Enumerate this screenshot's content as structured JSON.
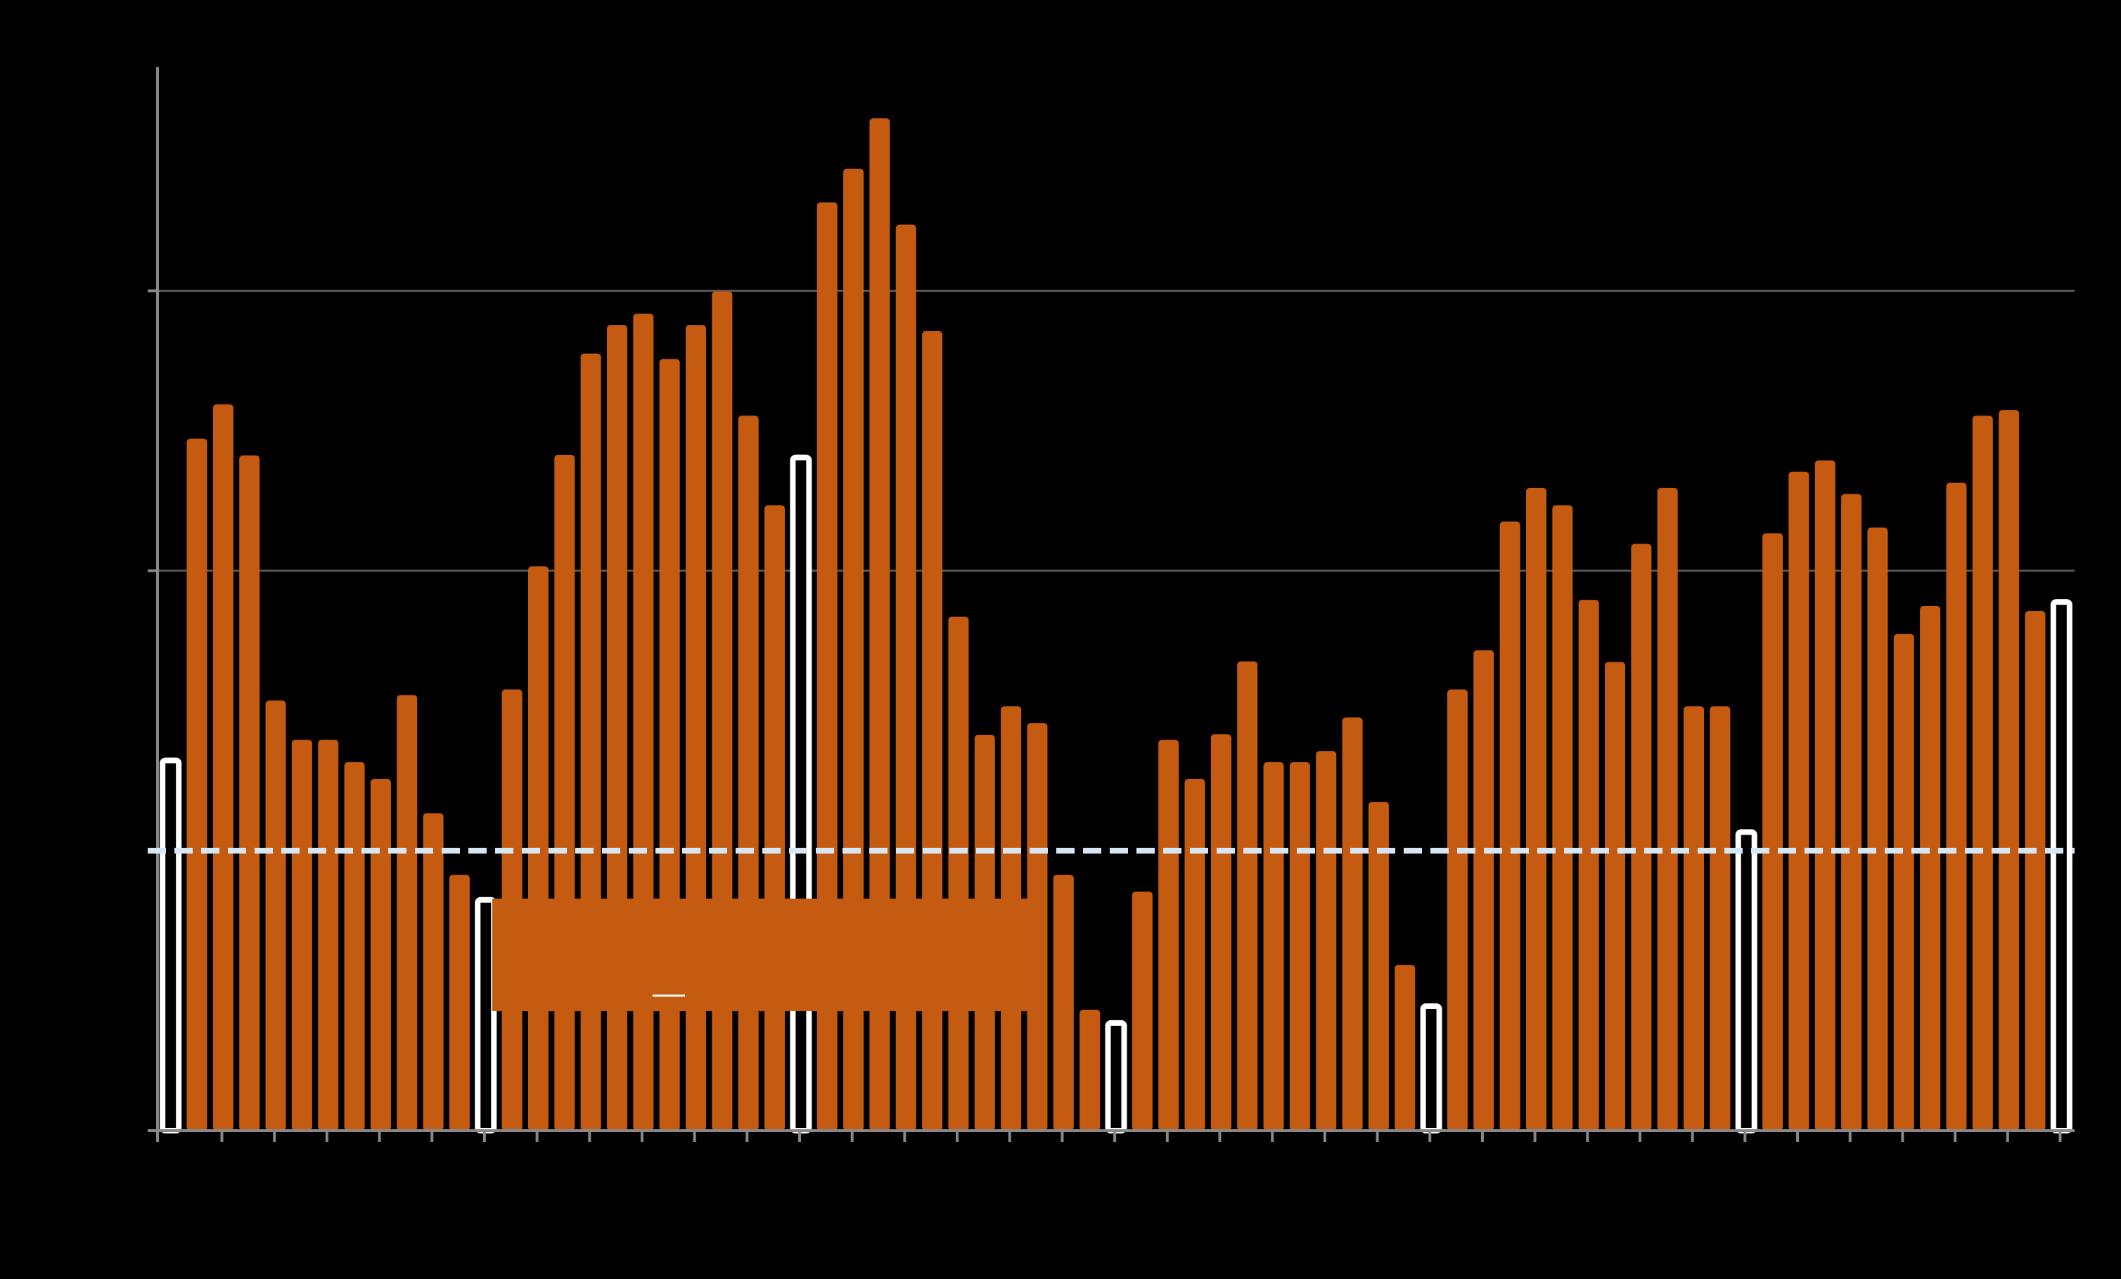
{
  "chart_data": {
    "type": "bar",
    "title": "",
    "xlabel": "",
    "ylabel": "",
    "ylim": [
      0,
      190
    ],
    "y_gridlines": [
      100,
      150
    ],
    "grid": "horizontal",
    "reference_line": {
      "value": 50,
      "style": "dashed",
      "color": "#d6e6f2"
    },
    "colors": {
      "background": "#000000",
      "bar": "#c55a11",
      "highlight_bar": "#ffffff",
      "axis": "#888888",
      "grid": "#555555"
    },
    "highlight_indices": [
      0,
      12,
      24,
      36,
      48,
      60,
      72
    ],
    "legend": {
      "position": "bottom-center",
      "color": "#c55a11"
    },
    "values": [
      66.5,
      123.6,
      129.7,
      120.6,
      76.8,
      69.8,
      69.8,
      65.8,
      62.8,
      77.8,
      56.7,
      45.7,
      41.6,
      78.8,
      100.8,
      120.7,
      138.8,
      143.9,
      145.9,
      137.8,
      143.9,
      149.9,
      127.7,
      111.7,
      120.6,
      165.8,
      171.8,
      180.8,
      161.8,
      142.8,
      91.8,
      70.7,
      75.8,
      72.8,
      45.7,
      21.6,
      19.6,
      42.7,
      69.8,
      62.8,
      70.8,
      83.8,
      65.8,
      65.8,
      67.8,
      73.8,
      58.7,
      29.6,
      22.6,
      78.8,
      85.8,
      108.8,
      114.8,
      111.7,
      94.8,
      83.7,
      104.8,
      114.8,
      75.8,
      75.8,
      53.7,
      106.7,
      117.7,
      119.7,
      113.7,
      107.7,
      88.7,
      93.7,
      115.7,
      127.7,
      128.7,
      92.8,
      94.8
    ]
  }
}
